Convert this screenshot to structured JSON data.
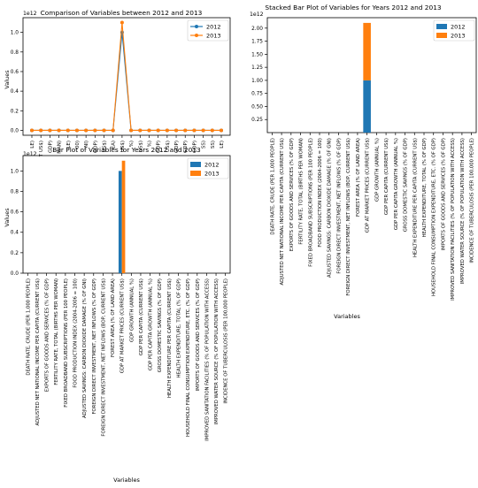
{
  "colors": {
    "s2012": "#1f77b4",
    "s2013": "#ff7f0e"
  },
  "chart_data": [
    {
      "type": "line",
      "title": "Comparison of Variables between 2012 and 2013",
      "xlabel": "",
      "ylabel": "Values",
      "exponent": "1e12",
      "ylim": [
        -0.05,
        1.15
      ],
      "yticks": [
        "0.0",
        "0.2",
        "0.4",
        "0.6",
        "0.8",
        "1.0"
      ],
      "legend": "top-right",
      "categories": [
        "DEATH RATE, CRUDE (PER 1,000 PEOPLE)",
        "ADJUSTED NET NATIONAL INCOME PER CAPITA (CURRENT US$)",
        "EXPORTS OF GOODS AND SERVICES (% OF GDP)",
        "FERTILITY RATE, TOTAL (BIRTHS PER WOMAN)",
        "FIXED BROADBAND SUBSCRIPTIONS (PER 100 PEOPLE)",
        "FOOD PRODUCTION INDEX (2004-2006 = 100)",
        "ADJUSTED SAVINGS: CARBON DIOXIDE DAMAGE (% OF GNI)",
        "FOREIGN DIRECT INVESTMENT, NET INFLOWS (% OF GDP)",
        "FOREIGN DIRECT INVESTMENT, NET INFLOWS (BOP, CURRENT US$)",
        "FOREST AREA (% OF LAND AREA)",
        "GDP AT MARKET PRICES (CURRENT US$)",
        "GDP GROWTH (ANNUAL %)",
        "GDP PER CAPITA (CURRENT US$)",
        "GDP PER CAPITA GROWTH (ANNUAL %)",
        "GROSS DOMESTIC SAVINGS (% OF GDP)",
        "HEALTH EXPENDITURE PER CAPITA (CURRENT US$)",
        "HEALTH EXPENDITURE, TOTAL (% OF GDP)",
        "HOUSEHOLD FINAL CONSUMPTION EXPENDITURE, ETC. (% OF GDP)",
        "IMPORTS OF GOODS AND SERVICES (% OF GDP)",
        "IMPROVED SANITATION FACILITIES (% OF POPULATION WITH ACCESS)",
        "IMPROVED WATER SOURCE (% OF POPULATION WITH ACCESS)",
        "INCIDENCE OF TUBERCULOSIS (PER 100,000 PEOPLE)"
      ],
      "tick_labels": [
        "LE)",
        "T US$)",
        "GDP)",
        "MAN)",
        "LE)",
        "00)",
        "NI)",
        "GDP)",
        "US$)",
        "EA)",
        "US$)",
        "%)",
        "US$)",
        "%)",
        "GDP)",
        "US$)",
        "GDP)",
        "GDP)",
        "GDP)",
        "SS)",
        "SS)",
        "LE)"
      ],
      "series": [
        {
          "name": "2012",
          "values": [
            0,
            0,
            0,
            0,
            0,
            0,
            0,
            0,
            0,
            0,
            1.0,
            0,
            0,
            0,
            0,
            0,
            0,
            0,
            0,
            0,
            0,
            0
          ]
        },
        {
          "name": "2013",
          "values": [
            0,
            0,
            0,
            0,
            0,
            0,
            0,
            0,
            0,
            0,
            1.1,
            0,
            0,
            0,
            0,
            0,
            0,
            0,
            0,
            0,
            0,
            0
          ]
        }
      ]
    },
    {
      "type": "bar",
      "stacked": true,
      "title": "Stacked Bar Plot of Variables for Years 2012 and 2013",
      "xlabel": "Variables",
      "ylabel": "",
      "exponent": "1e12",
      "ylim": [
        0,
        2.2
      ],
      "yticks": [
        "0.25",
        "0.50",
        "0.75",
        "1.00",
        "1.25",
        "1.50",
        "1.75",
        "2.00"
      ],
      "legend": "top-right",
      "categories": [
        "DEATH RATE, CRUDE (PER 1,000 PEOPLE)",
        "ADJUSTED NET NATIONAL INCOME PER CAPITA (CURRENT US$)",
        "EXPORTS OF GOODS AND SERVICES (% OF GDP)",
        "FERTILITY RATE, TOTAL (BIRTHS PER WOMAN)",
        "FIXED BROADBAND SUBSCRIPTIONS (PER 100 PEOPLE)",
        "FOOD PRODUCTION INDEX (2004-2006 = 100)",
        "ADJUSTED SAVINGS: CARBON DIOXIDE DAMAGE (% OF GNI)",
        "FOREIGN DIRECT INVESTMENT, NET INFLOWS (% OF GDP)",
        "FOREIGN DIRECT INVESTMENT, NET INFLOWS (BOP, CURRENT US$)",
        "FOREST AREA (% OF LAND AREA)",
        "GDP AT MARKET PRICES (CURRENT US$)",
        "GDP GROWTH (ANNUAL %)",
        "GDP PER CAPITA (CURRENT US$)",
        "GDP PER CAPITA GROWTH (ANNUAL %)",
        "GROSS DOMESTIC SAVINGS (% OF GDP)",
        "HEALTH EXPENDITURE PER CAPITA (CURRENT US$)",
        "HEALTH EXPENDITURE, TOTAL (% OF GDP)",
        "HOUSEHOLD FINAL CONSUMPTION EXPENDITURE, ETC. (% OF GDP)",
        "IMPORTS OF GOODS AND SERVICES (% OF GDP)",
        "IMPROVED SANITATION FACILITIES (% OF POPULATION WITH ACCESS)",
        "IMPROVED WATER SOURCE (% OF POPULATION WITH ACCESS)",
        "INCIDENCE OF TUBERCULOSIS (PER 100,000 PEOPLE)"
      ],
      "series": [
        {
          "name": "2012",
          "values": [
            0,
            0,
            0,
            0,
            0,
            0,
            0,
            0,
            0,
            0,
            1.0,
            0,
            0,
            0,
            0,
            0,
            0,
            0,
            0,
            0,
            0,
            0
          ]
        },
        {
          "name": "2013",
          "values": [
            0,
            0,
            0,
            0,
            0,
            0,
            0,
            0,
            0,
            0,
            1.1,
            0,
            0,
            0,
            0,
            0,
            0,
            0,
            0,
            0,
            0,
            0
          ]
        }
      ]
    },
    {
      "type": "bar",
      "grouped": true,
      "title": "Bar Plot of Variables for Years 2012 and 2013",
      "xlabel": "Variables",
      "ylabel": "Values",
      "exponent": "1e12",
      "ylim": [
        0,
        1.15
      ],
      "yticks": [
        "0.0",
        "0.2",
        "0.4",
        "0.6",
        "0.8",
        "1.0"
      ],
      "legend": "top-right",
      "categories": [
        "DEATH RATE, CRUDE (PER 1,000 PEOPLE)",
        "ADJUSTED NET NATIONAL INCOME PER CAPITA (CURRENT US$)",
        "EXPORTS OF GOODS AND SERVICES (% OF GDP)",
        "FERTILITY RATE, TOTAL (BIRTHS PER WOMAN)",
        "FIXED BROADBAND SUBSCRIPTIONS (PER 100 PEOPLE)",
        "FOOD PRODUCTION INDEX (2004-2006 = 100)",
        "ADJUSTED SAVINGS: CARBON DIOXIDE DAMAGE (% OF GNI)",
        "FOREIGN DIRECT INVESTMENT, NET INFLOWS (% OF GDP)",
        "FOREIGN DIRECT INVESTMENT, NET INFLOWS (BOP, CURRENT US$)",
        "FOREST AREA (% OF LAND AREA)",
        "GDP AT MARKET PRICES (CURRENT US$)",
        "GDP GROWTH (ANNUAL %)",
        "GDP PER CAPITA (CURRENT US$)",
        "GDP PER CAPITA GROWTH (ANNUAL %)",
        "GROSS DOMESTIC SAVINGS (% OF GDP)",
        "HEALTH EXPENDITURE PER CAPITA (CURRENT US$)",
        "HEALTH EXPENDITURE, TOTAL (% OF GDP)",
        "HOUSEHOLD FINAL CONSUMPTION EXPENDITURE, ETC. (% OF GDP)",
        "IMPORTS OF GOODS AND SERVICES (% OF GDP)",
        "IMPROVED SANITATION FACILITIES (% OF POPULATION WITH ACCESS)",
        "IMPROVED WATER SOURCE (% OF POPULATION WITH ACCESS)",
        "INCIDENCE OF TUBERCULOSIS (PER 100,000 PEOPLE)"
      ],
      "series": [
        {
          "name": "2012",
          "values": [
            0,
            0,
            0,
            0,
            0,
            0,
            0,
            0,
            0,
            0,
            1.0,
            0,
            0,
            0,
            0,
            0,
            0,
            0,
            0,
            0,
            0,
            0
          ]
        },
        {
          "name": "2013",
          "values": [
            0,
            0,
            0,
            0,
            0,
            0,
            0,
            0,
            0,
            0,
            1.1,
            0,
            0,
            0,
            0,
            0,
            0,
            0,
            0,
            0,
            0,
            0
          ]
        }
      ]
    }
  ]
}
